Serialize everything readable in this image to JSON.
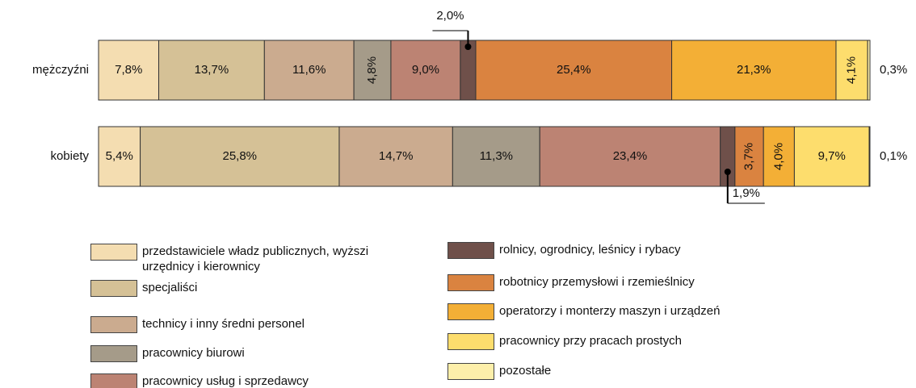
{
  "chart_data": {
    "type": "stacked-bar-horizontal",
    "categories": [
      "mężczyźni",
      "kobiety"
    ],
    "xlim": [
      0,
      100
    ],
    "series": [
      {
        "name": "przedstawiciele władz publicznych, wyższi urzędnicy i kierownicy",
        "color": "#f4ddb1",
        "values": [
          7.8,
          5.4
        ],
        "value_labels": [
          "7,8%",
          "5,4%"
        ]
      },
      {
        "name": "specjaliści",
        "color": "#d5c196",
        "values": [
          13.7,
          25.8
        ],
        "value_labels": [
          "13,7%",
          "25,8%"
        ]
      },
      {
        "name": "technicy i inny średni personel",
        "color": "#cbab8f",
        "values": [
          11.6,
          14.7
        ],
        "value_labels": [
          "11,6%",
          "14,7%"
        ]
      },
      {
        "name": "pracownicy biurowi",
        "color": "#a59b89",
        "values": [
          4.8,
          11.3
        ],
        "value_labels": [
          "4,8%",
          "11,3%"
        ]
      },
      {
        "name": "pracownicy usług i sprzedawcy",
        "color": "#bc8373",
        "values": [
          9.0,
          23.4
        ],
        "value_labels": [
          "9,0%",
          "23,4%"
        ]
      },
      {
        "name": "rolnicy, ogrodnicy, leśnicy i rybacy",
        "color": "#6f504a",
        "values": [
          2.0,
          1.9
        ],
        "value_labels": [
          "2,0%",
          "1,9%"
        ]
      },
      {
        "name": "robotnicy przemysłowi i rzemieślnicy",
        "color": "#da8340",
        "values": [
          25.4,
          3.7
        ],
        "value_labels": [
          "25,4%",
          "3,7%"
        ]
      },
      {
        "name": "operatorzy i monterzy maszyn i urządzeń",
        "color": "#f3af36",
        "values": [
          21.3,
          4.0
        ],
        "value_labels": [
          "21,3%",
          "4,0%"
        ]
      },
      {
        "name": "pracownicy przy pracach prostych",
        "color": "#fddd6d",
        "values": [
          4.1,
          9.7
        ],
        "value_labels": [
          "4,1%",
          "9,7%"
        ]
      },
      {
        "name": "pozostałe",
        "color": "#fdefaa",
        "values": [
          0.3,
          0.1
        ],
        "value_labels": [
          "0,3%",
          "0,1%"
        ]
      }
    ]
  }
}
